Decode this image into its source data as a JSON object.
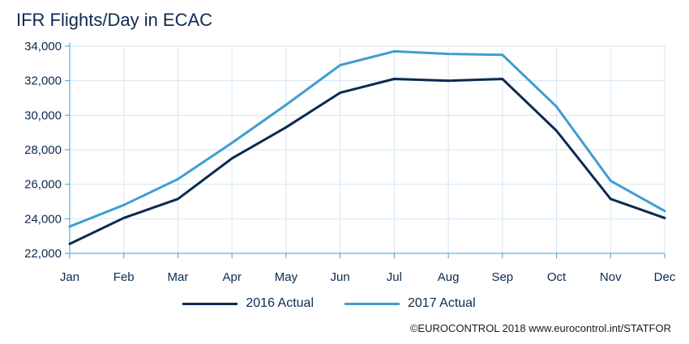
{
  "title": "IFR Flights/Day in ECAC",
  "credit": "©EUROCONTROL 2018 www.eurocontrol.int/STATFOR",
  "chart_data": {
    "type": "line",
    "title": "IFR Flights/Day in ECAC",
    "xlabel": "",
    "ylabel": "",
    "categories": [
      "Jan",
      "Feb",
      "Mar",
      "Apr",
      "May",
      "Jun",
      "Jul",
      "Aug",
      "Sep",
      "Oct",
      "Nov",
      "Dec"
    ],
    "ylim": [
      22000,
      34000
    ],
    "yticks": [
      22000,
      24000,
      26000,
      28000,
      30000,
      32000,
      34000
    ],
    "ytick_labels": [
      "22,000",
      "24,000",
      "26,000",
      "28,000",
      "30,000",
      "32,000",
      "34,000"
    ],
    "grid": true,
    "legend_position": "bottom",
    "series": [
      {
        "name": "2016 Actual",
        "color": "#0c2a4f",
        "values": [
          22550,
          24050,
          25150,
          27500,
          29300,
          31300,
          32100,
          32000,
          32100,
          29100,
          25150,
          24050
        ]
      },
      {
        "name": "2017 Actual",
        "color": "#3f9dd1",
        "values": [
          23550,
          24800,
          26300,
          28400,
          30600,
          32900,
          33700,
          33550,
          33500,
          30500,
          26200,
          24450
        ]
      }
    ]
  }
}
